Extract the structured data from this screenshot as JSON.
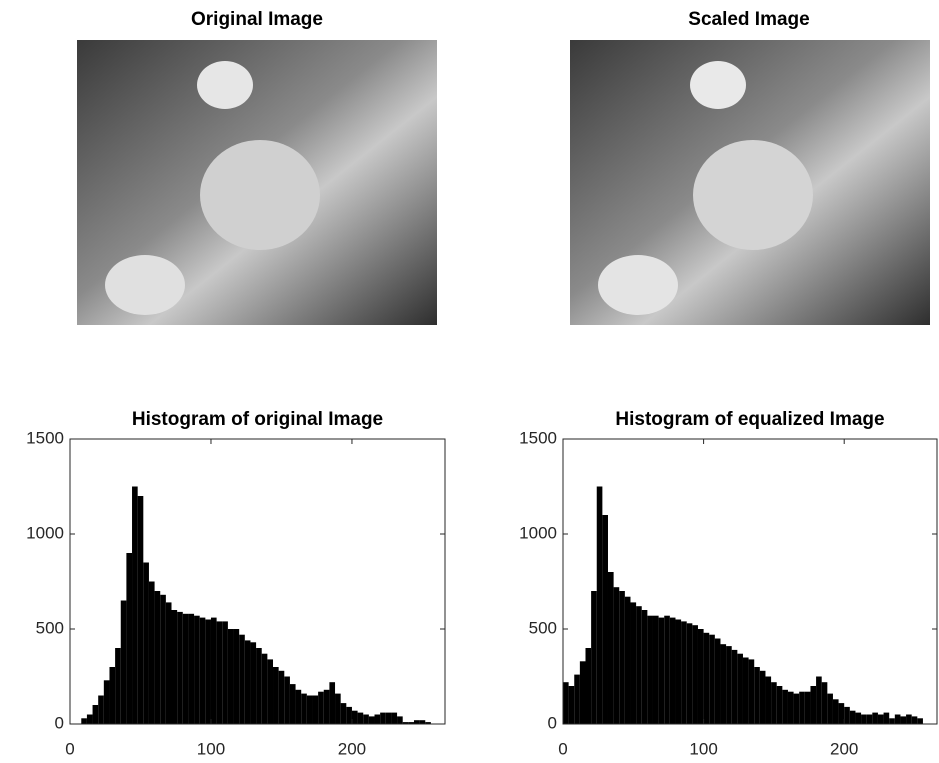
{
  "images": [
    {
      "title": "Original Image"
    },
    {
      "title": "Scaled Image"
    }
  ],
  "chart_data": [
    {
      "type": "histogram",
      "title": "Histogram of original Image",
      "color": "#000000",
      "bins": [
        0,
        4,
        8,
        12,
        16,
        20,
        24,
        28,
        32,
        36,
        40,
        44,
        48,
        52,
        56,
        60,
        64,
        68,
        72,
        76,
        80,
        84,
        88,
        92,
        96,
        100,
        104,
        108,
        112,
        116,
        120,
        124,
        128,
        132,
        136,
        140,
        144,
        148,
        152,
        156,
        160,
        164,
        168,
        172,
        176,
        180,
        184,
        188,
        192,
        196,
        200,
        204,
        208,
        212,
        216,
        220,
        224,
        228,
        232,
        236,
        240,
        244,
        248,
        252,
        256
      ],
      "values": [
        0,
        0,
        30,
        50,
        100,
        150,
        230,
        300,
        400,
        650,
        900,
        1250,
        1200,
        850,
        750,
        700,
        680,
        640,
        600,
        590,
        580,
        580,
        570,
        560,
        550,
        560,
        540,
        540,
        500,
        500,
        470,
        440,
        430,
        400,
        370,
        340,
        300,
        280,
        250,
        210,
        180,
        160,
        150,
        150,
        170,
        180,
        220,
        160,
        110,
        90,
        70,
        60,
        50,
        40,
        50,
        60,
        60,
        60,
        40,
        10,
        10,
        20,
        20,
        10
      ],
      "xlim": [
        0,
        266
      ],
      "ylim": [
        0,
        1500
      ],
      "xticks": [
        0,
        100,
        200
      ],
      "yticks": [
        0,
        500,
        1000,
        1500
      ]
    },
    {
      "type": "histogram",
      "title": "Histogram of equalized Image",
      "color": "#000000",
      "bins": [
        0,
        4,
        8,
        12,
        16,
        20,
        24,
        28,
        32,
        36,
        40,
        44,
        48,
        52,
        56,
        60,
        64,
        68,
        72,
        76,
        80,
        84,
        88,
        92,
        96,
        100,
        104,
        108,
        112,
        116,
        120,
        124,
        128,
        132,
        136,
        140,
        144,
        148,
        152,
        156,
        160,
        164,
        168,
        172,
        176,
        180,
        184,
        188,
        192,
        196,
        200,
        204,
        208,
        212,
        216,
        220,
        224,
        228,
        232,
        236,
        240,
        244,
        248,
        252,
        256
      ],
      "values": [
        220,
        200,
        260,
        330,
        400,
        700,
        1250,
        1100,
        800,
        720,
        700,
        670,
        640,
        620,
        600,
        570,
        570,
        560,
        570,
        560,
        550,
        540,
        530,
        520,
        500,
        480,
        470,
        450,
        420,
        410,
        390,
        370,
        350,
        340,
        300,
        280,
        250,
        220,
        200,
        180,
        170,
        160,
        170,
        170,
        200,
        250,
        220,
        160,
        130,
        110,
        90,
        70,
        60,
        50,
        50,
        60,
        50,
        60,
        30,
        50,
        40,
        50,
        40,
        30
      ],
      "xlim": [
        0,
        266
      ],
      "ylim": [
        0,
        1500
      ],
      "xticks": [
        0,
        100,
        200
      ],
      "yticks": [
        0,
        500,
        1000,
        1500
      ]
    }
  ]
}
